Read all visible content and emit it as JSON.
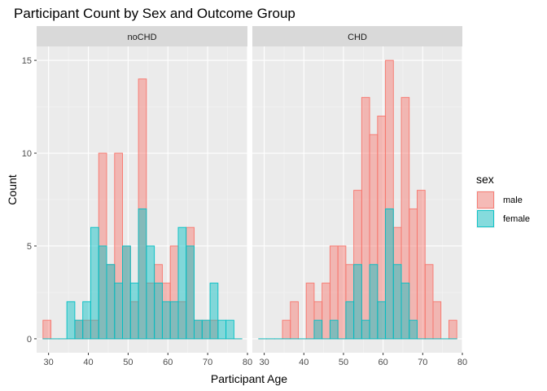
{
  "chart_data": {
    "type": "bar",
    "subtype": "faceted-histogram",
    "title": "Participant Count by Sex and Outcome Group",
    "xlabel": "Participant Age",
    "ylabel": "Count",
    "xlim": [
      27,
      80
    ],
    "ylim": [
      -0.75,
      15.75
    ],
    "x_ticks": [
      30,
      40,
      50,
      60,
      70,
      80
    ],
    "y_ticks": [
      0,
      5,
      10,
      15
    ],
    "bins": {
      "start": 28.6,
      "width": 2,
      "count": 25
    },
    "legend": {
      "title": "sex",
      "position": "right",
      "entries": [
        {
          "label": "male",
          "fill": "#F8766D",
          "stroke": "#F8766D"
        },
        {
          "label": "female",
          "fill": "#00BFC4",
          "stroke": "#00BFC4"
        }
      ]
    },
    "facets": [
      {
        "label": "noCHD",
        "series": [
          {
            "name": "male",
            "values": [
              1,
              0,
              0,
              0,
              1,
              1,
              1,
              10,
              4,
              10,
              5,
              2,
              14,
              3,
              4,
              3,
              5,
              2,
              6,
              1,
              1,
              1,
              0,
              0,
              0
            ]
          },
          {
            "name": "female",
            "values": [
              0,
              0,
              0,
              2,
              1,
              2,
              6,
              5,
              4,
              3,
              5,
              3,
              7,
              5,
              3,
              2,
              2,
              6,
              5,
              1,
              1,
              3,
              1,
              1,
              0
            ]
          }
        ]
      },
      {
        "label": "CHD",
        "series": [
          {
            "name": "male",
            "values": [
              0,
              0,
              0,
              1,
              2,
              0,
              3,
              2,
              3,
              5,
              5,
              4,
              8,
              13,
              11,
              12,
              15,
              6,
              13,
              7,
              8,
              4,
              2,
              0,
              1
            ]
          },
          {
            "name": "female",
            "values": [
              0,
              0,
              0,
              0,
              0,
              0,
              0,
              1,
              0,
              1,
              0,
              2,
              4,
              1,
              4,
              2,
              7,
              4,
              3,
              1,
              0,
              0,
              0,
              0,
              0
            ]
          }
        ]
      }
    ],
    "grid": true
  }
}
